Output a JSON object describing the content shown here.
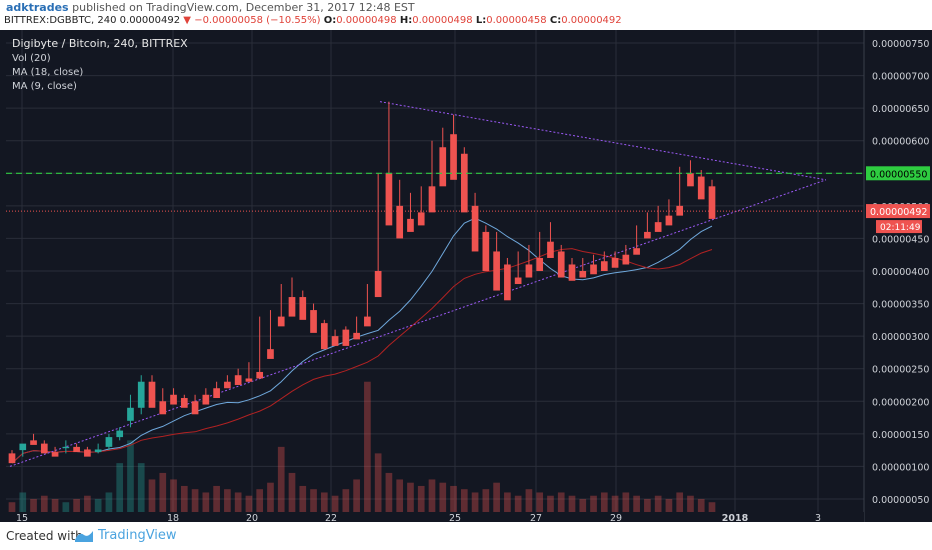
{
  "header": {
    "author": "adktrades",
    "published": "published on TradingView.com, December 31, 2017 12:48 EST",
    "symbol": "BITTREX:DGBBTC, 240",
    "last": "0.00000492",
    "change": "−0.00000058 (−10.55%)",
    "o_label": "O:",
    "o_value": "0.00000498",
    "h_label": "H:",
    "h_value": "0.00000498",
    "l_label": "L:",
    "l_value": "0.00000458",
    "c_label": "C:",
    "c_value": "0.00000492"
  },
  "legend": {
    "title": "Digibyte / Bitcoin, 240, BITTREX",
    "vol": "Vol (20)",
    "ma18": "MA (18, close)",
    "ma9": "MA (9, close)"
  },
  "footer": {
    "created": "Created with",
    "brand": "TradingView"
  },
  "colors": {
    "background": "#131722",
    "grid": "#2a2e39",
    "up": "#26a69a",
    "down": "#ef5350",
    "ma9": "#6fa8dc",
    "ma18": "#b22222",
    "trendline": "#9b59f6",
    "resistance": "#2ecc40",
    "last_price": "#ef5350",
    "axis_text": "#cfd2d8"
  },
  "chart_data": {
    "type": "candlestick",
    "ylim": [
      3e-07,
      7.7e-06
    ],
    "y_ticks": [
      "0.00000750",
      "0.00000700",
      "0.00000650",
      "0.00000600",
      "0.00000550",
      "0.00000500",
      "0.00000450",
      "0.00000400",
      "0.00000350",
      "0.00000300",
      "0.00000250",
      "0.00000200",
      "0.00000150",
      "0.00000100",
      "0.00000050"
    ],
    "x_ticks": [
      "15",
      "18",
      "20",
      "22",
      "25",
      "27",
      "29",
      "2018",
      "3"
    ],
    "ohlc": [
      [
        1.2,
        1.25,
        1.1,
        1.05
      ],
      [
        1.25,
        1.3,
        1.15,
        1.35
      ],
      [
        1.4,
        1.5,
        1.35,
        1.33
      ],
      [
        1.35,
        1.4,
        1.25,
        1.2
      ],
      [
        1.22,
        1.3,
        1.18,
        1.15
      ],
      [
        1.28,
        1.4,
        1.2,
        1.3
      ],
      [
        1.3,
        1.35,
        1.25,
        1.22
      ],
      [
        1.26,
        1.3,
        1.2,
        1.15
      ],
      [
        1.22,
        1.35,
        1.2,
        1.26
      ],
      [
        1.3,
        1.5,
        1.25,
        1.45
      ],
      [
        1.45,
        1.6,
        1.4,
        1.55
      ],
      [
        1.7,
        2.1,
        1.6,
        1.9
      ],
      [
        1.9,
        2.4,
        1.8,
        2.3
      ],
      [
        2.3,
        2.4,
        2.0,
        1.9
      ],
      [
        2.0,
        2.2,
        1.95,
        1.8
      ],
      [
        2.1,
        2.2,
        2.0,
        1.95
      ],
      [
        2.05,
        2.1,
        1.95,
        1.9
      ],
      [
        2.0,
        2.1,
        1.9,
        1.8
      ],
      [
        2.1,
        2.2,
        2.0,
        1.95
      ],
      [
        2.2,
        2.3,
        2.1,
        2.05
      ],
      [
        2.3,
        2.4,
        2.25,
        2.2
      ],
      [
        2.4,
        2.5,
        2.3,
        2.25
      ],
      [
        2.35,
        2.6,
        2.3,
        2.3
      ],
      [
        2.45,
        3.3,
        2.4,
        2.35
      ],
      [
        2.8,
        3.4,
        2.7,
        2.65
      ],
      [
        3.3,
        3.8,
        3.2,
        3.15
      ],
      [
        3.6,
        3.9,
        3.4,
        3.3
      ],
      [
        3.6,
        3.7,
        3.4,
        3.25
      ],
      [
        3.4,
        3.5,
        3.2,
        3.05
      ],
      [
        3.2,
        3.25,
        2.95,
        2.8
      ],
      [
        3.0,
        3.1,
        2.95,
        2.85
      ],
      [
        3.1,
        3.15,
        2.95,
        2.85
      ],
      [
        3.05,
        3.3,
        3.0,
        2.95
      ],
      [
        3.3,
        3.8,
        3.2,
        3.15
      ],
      [
        4.0,
        5.5,
        3.9,
        3.6
      ],
      [
        5.5,
        6.6,
        5.2,
        4.7
      ],
      [
        5.0,
        5.4,
        4.7,
        4.5
      ],
      [
        4.8,
        5.2,
        4.7,
        4.6
      ],
      [
        4.9,
        5.3,
        4.8,
        4.7
      ],
      [
        5.3,
        6.0,
        5.1,
        4.9
      ],
      [
        5.9,
        6.2,
        5.5,
        5.3
      ],
      [
        6.1,
        6.4,
        5.7,
        5.4
      ],
      [
        5.8,
        5.9,
        5.2,
        4.9
      ],
      [
        5.0,
        5.2,
        4.5,
        4.3
      ],
      [
        4.6,
        4.7,
        4.2,
        4.0
      ],
      [
        4.3,
        4.6,
        4.0,
        3.7
      ],
      [
        4.1,
        4.2,
        3.8,
        3.55
      ],
      [
        3.9,
        4.3,
        3.85,
        3.8
      ],
      [
        4.1,
        4.4,
        4.0,
        3.9
      ],
      [
        4.2,
        4.6,
        4.1,
        4.0
      ],
      [
        4.45,
        4.75,
        4.35,
        4.2
      ],
      [
        4.3,
        4.4,
        4.0,
        3.9
      ],
      [
        4.1,
        4.2,
        3.9,
        3.85
      ],
      [
        4.0,
        4.2,
        3.95,
        3.9
      ],
      [
        4.1,
        4.25,
        4.0,
        3.95
      ],
      [
        4.15,
        4.3,
        4.05,
        4.0
      ],
      [
        4.2,
        4.3,
        4.1,
        4.05
      ],
      [
        4.25,
        4.4,
        4.2,
        4.1
      ],
      [
        4.35,
        4.7,
        4.3,
        4.25
      ],
      [
        4.6,
        4.9,
        4.55,
        4.5
      ],
      [
        4.75,
        5.0,
        4.65,
        4.6
      ],
      [
        4.85,
        5.1,
        4.75,
        4.7
      ],
      [
        5.0,
        5.6,
        4.9,
        4.85
      ],
      [
        5.5,
        5.7,
        5.4,
        5.3
      ],
      [
        5.45,
        5.55,
        5.2,
        5.1
      ],
      [
        5.3,
        5.4,
        4.9,
        4.8
      ]
    ],
    "volume": [
      0.03,
      0.06,
      0.04,
      0.05,
      0.04,
      0.03,
      0.04,
      0.05,
      0.04,
      0.06,
      0.15,
      0.22,
      0.15,
      0.1,
      0.12,
      0.1,
      0.08,
      0.07,
      0.06,
      0.08,
      0.07,
      0.06,
      0.05,
      0.07,
      0.09,
      0.2,
      0.12,
      0.08,
      0.07,
      0.06,
      0.05,
      0.07,
      0.1,
      0.4,
      0.18,
      0.12,
      0.1,
      0.09,
      0.08,
      0.1,
      0.09,
      0.08,
      0.07,
      0.06,
      0.07,
      0.09,
      0.06,
      0.05,
      0.07,
      0.06,
      0.05,
      0.06,
      0.05,
      0.04,
      0.05,
      0.06,
      0.05,
      0.06,
      0.05,
      0.04,
      0.05,
      0.04,
      0.06,
      0.05,
      0.04,
      0.03
    ],
    "resistance": 5.5e-06,
    "last_price_label": "0.00000492",
    "resistance_label": "0.00000550",
    "countdown": "02:11:49"
  }
}
